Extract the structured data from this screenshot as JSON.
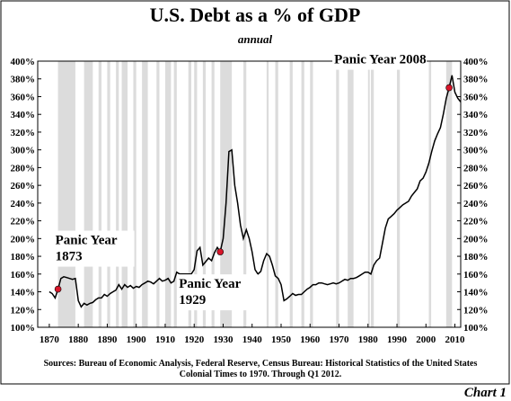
{
  "chart_data": {
    "type": "line",
    "title": "U.S. Debt as a % of GDP",
    "subtitle": "annual",
    "sources": [
      "Sources: Bureau of Economic Analysis, Federal Reserve, Census Bureau: Historical Statistics of the United States",
      "Colonial Times to 1970.   Through Q1 2012."
    ],
    "footer": "Chart 1",
    "xlim": [
      1866,
      2012
    ],
    "ylim": [
      100,
      400
    ],
    "xticks": [
      1870,
      1880,
      1890,
      1900,
      1910,
      1920,
      1930,
      1940,
      1950,
      1960,
      1970,
      1980,
      1990,
      2000,
      2010
    ],
    "yticks": [
      {
        "value": 100,
        "label": "100%"
      },
      {
        "value": 120,
        "label": "120%"
      },
      {
        "value": 140,
        "label": "140%"
      },
      {
        "value": 160,
        "label": "160%"
      },
      {
        "value": 180,
        "label": "180%"
      },
      {
        "value": 200,
        "label": "200%"
      },
      {
        "value": 220,
        "label": "220%"
      },
      {
        "value": 240,
        "label": "240%"
      },
      {
        "value": 260,
        "label": "260%"
      },
      {
        "value": 280,
        "label": "280%"
      },
      {
        "value": 300,
        "label": "300%"
      },
      {
        "value": 320,
        "label": "320%"
      },
      {
        "value": 340,
        "label": "340%"
      },
      {
        "value": 360,
        "label": "360%"
      },
      {
        "value": 380,
        "label": "380%"
      },
      {
        "value": 400,
        "label": "400%"
      }
    ],
    "recessions": [
      [
        1873,
        1879
      ],
      [
        1882,
        1885
      ],
      [
        1887,
        1888
      ],
      [
        1890,
        1891
      ],
      [
        1893,
        1894
      ],
      [
        1895,
        1897
      ],
      [
        1899,
        1900
      ],
      [
        1902,
        1904
      ],
      [
        1907,
        1908
      ],
      [
        1910,
        1912
      ],
      [
        1913,
        1914
      ],
      [
        1918,
        1919
      ],
      [
        1920,
        1921
      ],
      [
        1923,
        1924
      ],
      [
        1926,
        1927
      ],
      [
        1929,
        1933
      ],
      [
        1937,
        1938
      ],
      [
        1945,
        1945.7
      ],
      [
        1948,
        1949
      ],
      [
        1953,
        1954
      ],
      [
        1957,
        1958
      ],
      [
        1960,
        1961
      ],
      [
        1969,
        1970
      ],
      [
        1973,
        1975
      ],
      [
        1980,
        1980.6
      ],
      [
        1981,
        1982
      ],
      [
        1990,
        1991
      ],
      [
        2001,
        2001.8
      ],
      [
        2007,
        2009
      ]
    ],
    "recession_color": "#dcdcdc",
    "color": "#000000",
    "marker_color": "#d8162a",
    "x": [
      1870,
      1871,
      1872,
      1873,
      1874,
      1875,
      1876,
      1877,
      1878,
      1879,
      1880,
      1881,
      1882,
      1883,
      1884,
      1885,
      1886,
      1887,
      1888,
      1889,
      1890,
      1891,
      1892,
      1893,
      1894,
      1895,
      1896,
      1897,
      1898,
      1899,
      1900,
      1901,
      1902,
      1903,
      1904,
      1905,
      1906,
      1907,
      1908,
      1909,
      1910,
      1911,
      1912,
      1913,
      1914,
      1915,
      1916,
      1917,
      1918,
      1919,
      1920,
      1921,
      1922,
      1923,
      1924,
      1925,
      1926,
      1927,
      1928,
      1929,
      1930,
      1931,
      1932,
      1933,
      1934,
      1935,
      1936,
      1937,
      1938,
      1939,
      1940,
      1941,
      1942,
      1943,
      1944,
      1945,
      1946,
      1947,
      1948,
      1949,
      1950,
      1951,
      1952,
      1953,
      1954,
      1955,
      1956,
      1957,
      1958,
      1959,
      1960,
      1961,
      1962,
      1963,
      1964,
      1965,
      1966,
      1967,
      1968,
      1969,
      1970,
      1971,
      1972,
      1973,
      1974,
      1975,
      1976,
      1977,
      1978,
      1979,
      1980,
      1981,
      1982,
      1983,
      1984,
      1985,
      1986,
      1987,
      1988,
      1989,
      1990,
      1991,
      1992,
      1993,
      1994,
      1995,
      1996,
      1997,
      1998,
      1999,
      2000,
      2001,
      2002,
      2003,
      2004,
      2005,
      2006,
      2007,
      2008,
      2009,
      2010,
      2011,
      2012
    ],
    "values": [
      140,
      138,
      133,
      143,
      155,
      157,
      156,
      155,
      154,
      155,
      130,
      123,
      127,
      125,
      127,
      128,
      131,
      133,
      133,
      137,
      135,
      138,
      140,
      142,
      148,
      143,
      148,
      145,
      147,
      144,
      146,
      145,
      148,
      150,
      152,
      151,
      149,
      152,
      155,
      152,
      153,
      155,
      150,
      152,
      162,
      160,
      160,
      160,
      160,
      160,
      165,
      186,
      190,
      170,
      174,
      178,
      175,
      184,
      190,
      185,
      200,
      240,
      298,
      300,
      260,
      240,
      215,
      200,
      210,
      200,
      185,
      165,
      160,
      163,
      175,
      183,
      180,
      170,
      158,
      155,
      148,
      130,
      132,
      135,
      138,
      136,
      137,
      137,
      140,
      143,
      145,
      148,
      148,
      150,
      150,
      149,
      148,
      149,
      150,
      149,
      150,
      152,
      154,
      153,
      155,
      155,
      156,
      158,
      160,
      162,
      162,
      160,
      170,
      175,
      178,
      195,
      212,
      222,
      225,
      228,
      232,
      235,
      238,
      240,
      242,
      248,
      252,
      256,
      265,
      268,
      275,
      285,
      298,
      310,
      318,
      325,
      340,
      358,
      370,
      384,
      365,
      358,
      354
    ],
    "annotations": [
      {
        "lines": [
          "Panic Year",
          "1873"
        ],
        "x": 1873,
        "y": 143
      },
      {
        "lines": [
          "Panic Year",
          "1929"
        ],
        "x": 1929,
        "y": 185
      },
      {
        "lines": [
          "Panic Year 2008"
        ],
        "x": 2008,
        "y": 370
      }
    ]
  }
}
